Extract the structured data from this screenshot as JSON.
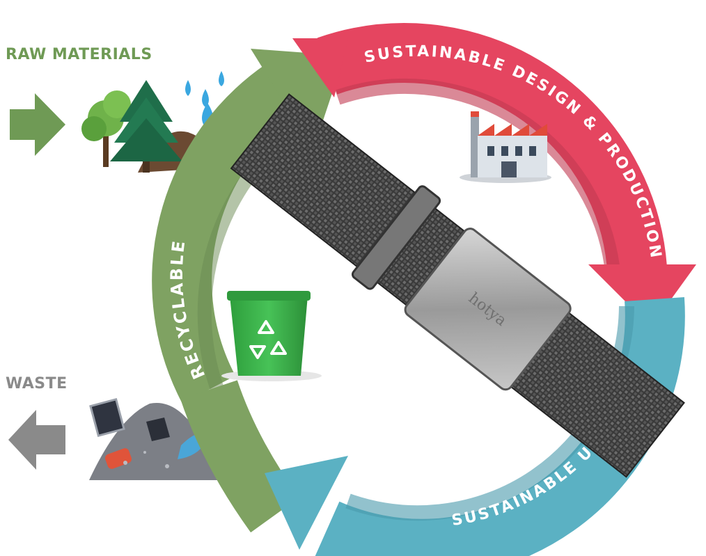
{
  "labels": {
    "raw_materials": "RAW MATERIALS",
    "waste": "WASTE",
    "design": "SUSTAINABLE DESIGN & PRODUCTION",
    "use": "SUSTAINABLE USE",
    "recyclable": "RECYCLABLE",
    "buckle_engraving": "hotya"
  },
  "colors": {
    "raw_green": "#6f9a55",
    "waste_gray": "#8a8a8a",
    "design_red": "#e54560",
    "use_teal": "#5bb1c3",
    "recycle_green": "#7fa262",
    "bin_green": "#3db54a"
  },
  "icons": {
    "raw": "trees-and-water-drops-icon",
    "factory": "factory-icon",
    "bin": "recycling-bin-icon",
    "waste": "waste-pile-icon",
    "strap": "nylon-watch-strap-image"
  }
}
